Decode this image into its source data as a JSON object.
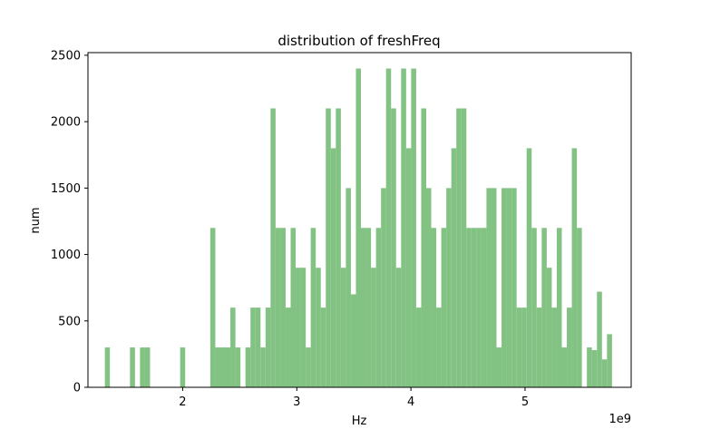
{
  "chart_data": {
    "type": "bar",
    "title": "distribution of freshFreq",
    "xlabel": "Hz",
    "ylabel": "num",
    "x_offset_label": "1e9",
    "xlim": [
      1.17,
      5.93
    ],
    "ylim": [
      0,
      2520
    ],
    "xticks": [
      2,
      3,
      4,
      5
    ],
    "yticks": [
      0,
      500,
      1000,
      1500,
      2000,
      2500
    ],
    "grid": false,
    "legend": "none",
    "bar_color": "#82c283",
    "bin_width": 0.044,
    "series": [
      {
        "x": [
          1.34,
          1.384,
          1.428,
          1.472,
          1.516,
          1.56,
          1.604,
          1.648,
          1.692,
          1.736,
          1.78,
          1.824,
          1.868,
          1.912,
          1.956,
          2.0,
          2.044,
          2.088,
          2.132,
          2.176,
          2.22,
          2.264,
          2.308,
          2.352,
          2.396,
          2.44,
          2.484,
          2.528,
          2.572,
          2.616,
          2.66,
          2.704,
          2.748,
          2.792,
          2.836,
          2.88,
          2.924,
          2.968,
          3.012,
          3.056,
          3.1,
          3.144,
          3.188,
          3.232,
          3.276,
          3.32,
          3.364,
          3.408,
          3.452,
          3.496,
          3.54,
          3.584,
          3.628,
          3.672,
          3.716,
          3.76,
          3.804,
          3.848,
          3.892,
          3.936,
          3.98,
          4.024,
          4.068,
          4.112,
          4.156,
          4.2,
          4.244,
          4.288,
          4.332,
          4.376,
          4.42,
          4.464,
          4.508,
          4.552,
          4.596,
          4.64,
          4.684,
          4.728,
          4.772,
          4.816,
          4.86,
          4.904,
          4.948,
          4.992,
          5.036,
          5.08,
          5.124,
          5.168,
          5.212,
          5.256,
          5.3,
          5.344,
          5.388,
          5.432,
          5.476,
          5.52,
          5.564,
          5.608,
          5.652,
          5.696,
          5.74
        ],
        "values": [
          300,
          0,
          0,
          0,
          0,
          300,
          0,
          300,
          300,
          0,
          0,
          0,
          0,
          0,
          0,
          300,
          0,
          0,
          0,
          0,
          0,
          1200,
          300,
          300,
          300,
          600,
          300,
          0,
          300,
          600,
          600,
          300,
          600,
          2100,
          1200,
          1200,
          600,
          1200,
          900,
          900,
          300,
          1200,
          900,
          600,
          2100,
          1800,
          2100,
          900,
          1500,
          700,
          2400,
          1200,
          1200,
          900,
          1200,
          1500,
          2400,
          2100,
          900,
          2400,
          1800,
          2400,
          600,
          2100,
          1500,
          1200,
          600,
          1200,
          1500,
          1800,
          2100,
          2100,
          1200,
          1200,
          1200,
          1200,
          1500,
          1500,
          300,
          1500,
          1500,
          1500,
          600,
          600,
          1800,
          1200,
          600,
          1200,
          900,
          600,
          1200,
          300,
          600,
          1800,
          1200,
          0,
          300,
          280,
          720,
          210,
          400
        ]
      }
    ]
  }
}
